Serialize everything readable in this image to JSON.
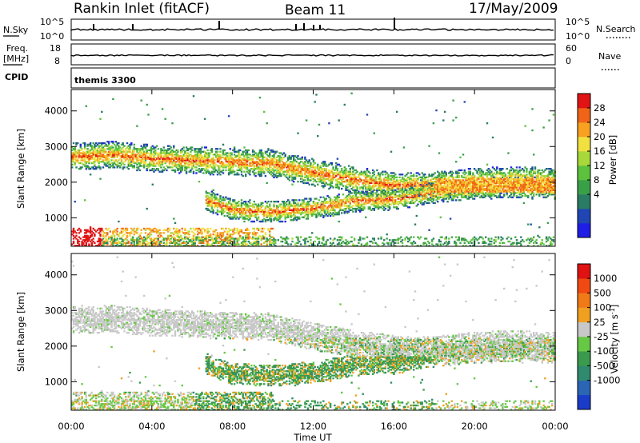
{
  "chart_data": {
    "type": "heatmap",
    "header": {
      "station": "Rankin Inlet (fitACF)",
      "beam": "Beam 11",
      "date": "17/May/2009"
    },
    "summary_panels": {
      "nsky": {
        "label": "N.Sky",
        "ticks": [
          "10^5",
          "10^0"
        ]
      },
      "nsearch": {
        "label": "N.Search",
        "ticks": [
          "10^5",
          "10^0"
        ]
      },
      "freq": {
        "label": "Freq.",
        "unit": "[MHz]",
        "ticks": [
          "18",
          "8"
        ]
      },
      "nave": {
        "label": "Nave",
        "ticks": [
          "60",
          "0"
        ]
      },
      "cpid": {
        "label": "CPID",
        "value": "themis 3300"
      }
    },
    "x_axis": {
      "label": "Time UT",
      "range": [
        0,
        24
      ],
      "ticks": [
        "00:00",
        "04:00",
        "08:00",
        "12:00",
        "16:00",
        "20:00",
        "00:00"
      ]
    },
    "y_axis": {
      "label": "Slant Range [km]",
      "range": [
        200,
        4600
      ],
      "ticks": [
        "1000",
        "2000",
        "3000",
        "4000"
      ]
    },
    "power": {
      "label": "Power [dB]",
      "scale_labels": [
        "28",
        "24",
        "20",
        "16",
        "12",
        "8",
        "4"
      ],
      "colors": [
        "#1e1ee6",
        "#2046b4",
        "#2a7c64",
        "#3aa048",
        "#5cc23e",
        "#a8d83a",
        "#f0e040",
        "#f8a020",
        "#f06418",
        "#e01414"
      ]
    },
    "velocity": {
      "label": "Velocity [m s",
      "unit_exp": "-1",
      "unit_close": "]",
      "scale_labels": [
        "1000",
        "500",
        "100",
        "25",
        "-25",
        "-100",
        "-500",
        "-1000"
      ],
      "colors": [
        "#1a3cc8",
        "#2a66b4",
        "#2f8a6e",
        "#3a9a4e",
        "#66c844",
        "#c8c8c8",
        "#f0a020",
        "#f07a18",
        "#f04a12",
        "#e01212"
      ]
    },
    "echo_bands": [
      {
        "name": "far",
        "points": [
          [
            0,
            2700
          ],
          [
            2,
            2750
          ],
          [
            4,
            2650
          ],
          [
            6,
            2600
          ],
          [
            8,
            2550
          ],
          [
            10,
            2500
          ],
          [
            12,
            2250
          ],
          [
            14,
            2050
          ],
          [
            16,
            1900
          ],
          [
            18,
            1900
          ],
          [
            20,
            2000
          ],
          [
            22,
            2050
          ],
          [
            24,
            2000
          ]
        ]
      },
      {
        "name": "mid",
        "points": [
          [
            6.6,
            1500
          ],
          [
            8,
            1200
          ],
          [
            10,
            1150
          ],
          [
            12,
            1250
          ],
          [
            14,
            1450
          ],
          [
            16,
            1500
          ],
          [
            18,
            1700
          ],
          [
            20,
            1800
          ],
          [
            22,
            1850
          ],
          [
            24,
            1800
          ]
        ]
      }
    ]
  }
}
